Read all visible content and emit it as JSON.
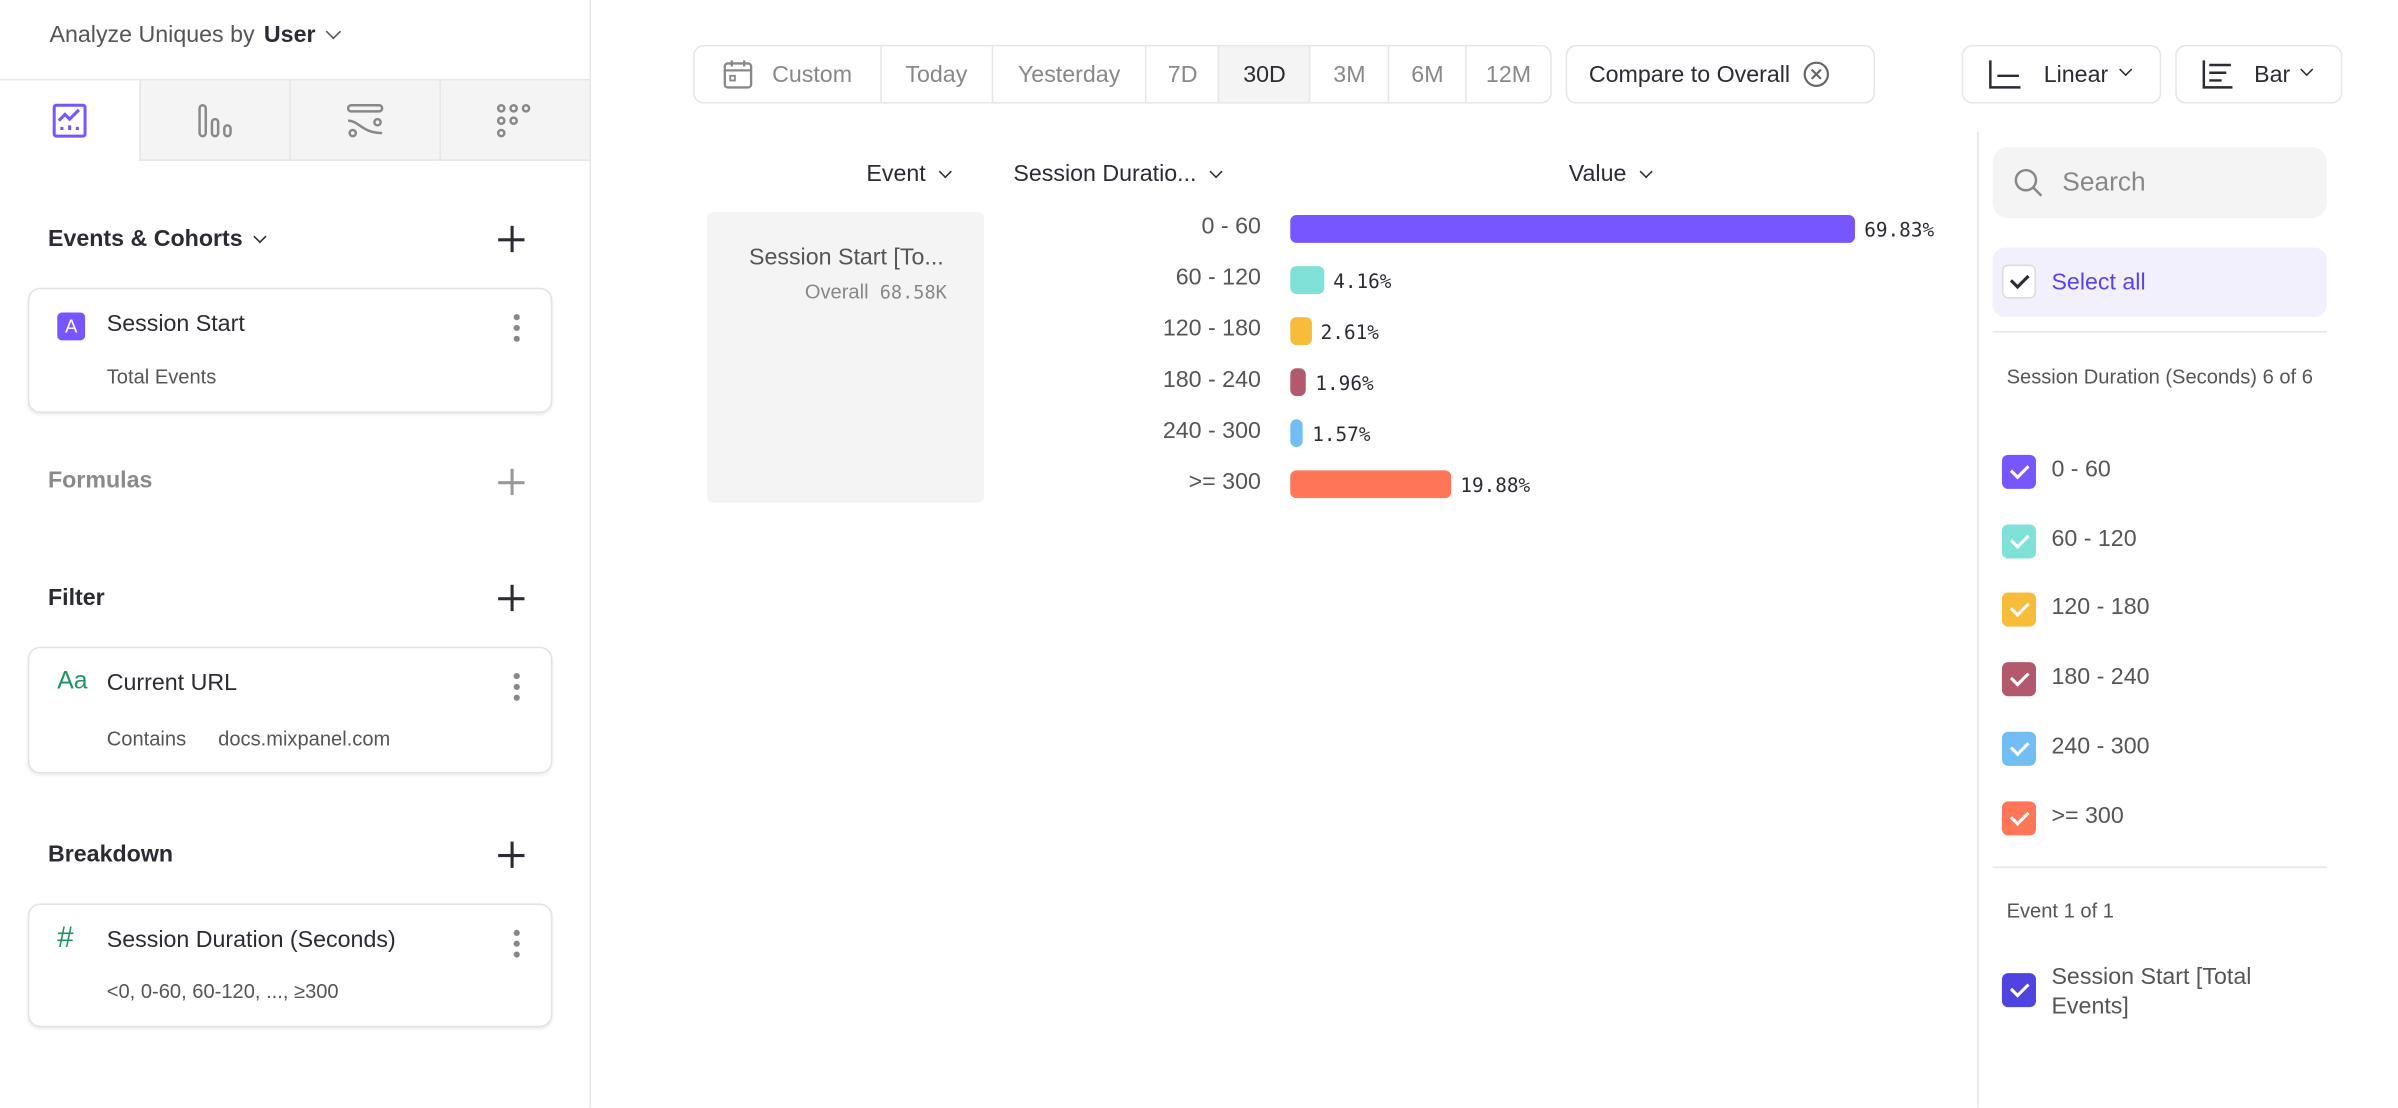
{
  "sidebar": {
    "analyze_label": "Analyze Uniques by",
    "analyze_value": "User",
    "tabs": [
      {
        "icon": "insights-chart-icon",
        "active": true
      },
      {
        "icon": "funnels-bar-icon",
        "active": false
      },
      {
        "icon": "flows-icon",
        "active": false
      },
      {
        "icon": "retention-grid-icon",
        "active": false
      }
    ],
    "events_title": "Events & Cohorts",
    "event_card": {
      "badge": "A",
      "name": "Session Start",
      "sub": "Total Events"
    },
    "formulas_title": "Formulas",
    "filter_title": "Filter",
    "filter_card": {
      "icon_text": "Aa",
      "name": "Current URL",
      "operator": "Contains",
      "value": "docs.mixpanel.com"
    },
    "breakdown_title": "Breakdown",
    "breakdown_card": {
      "icon_text": "#",
      "name": "Session Duration (Seconds)",
      "sub": "<0, 0-60, 60-120, ..., ≥300"
    }
  },
  "toolbar": {
    "date_ranges": [
      "Custom",
      "Today",
      "Yesterday",
      "7D",
      "30D",
      "3M",
      "6M",
      "12M"
    ],
    "selected_range": "30D",
    "compare_label": "Compare to Overall",
    "scale_label": "Linear",
    "chart_type_label": "Bar"
  },
  "table": {
    "headers": {
      "event": "Event",
      "breakdown": "Session Duratio...",
      "value": "Value"
    },
    "event_name": "Session Start [To...",
    "overall_label": "Overall",
    "overall_value": "68.58K"
  },
  "chart_data": {
    "type": "bar",
    "orientation": "horizontal",
    "categories": [
      "0 - 60",
      "60 - 120",
      "120 - 180",
      "180 - 240",
      "240 - 300",
      ">= 300"
    ],
    "values": [
      69.83,
      4.16,
      2.61,
      1.96,
      1.57,
      19.88
    ],
    "labels": [
      "69.83%",
      "4.16%",
      "2.61%",
      "1.96%",
      "1.57%",
      "19.88%"
    ],
    "colors": [
      "#7856ff",
      "#80e1d9",
      "#f8bc3b",
      "#b2596e",
      "#72bef4",
      "#ff7557"
    ]
  },
  "legend": {
    "search_placeholder": "Search",
    "select_all": "Select all",
    "breakdown_heading": "Session Duration (Seconds) 6 of 6",
    "items": [
      "0 - 60",
      "60 - 120",
      "120 - 180",
      "180 - 240",
      "240 - 300",
      ">= 300"
    ],
    "event_heading": "Event 1 of 1",
    "event_item": "Session Start [Total Events]",
    "event_color": "#4f44e0",
    "accent": "#5a43e8"
  }
}
